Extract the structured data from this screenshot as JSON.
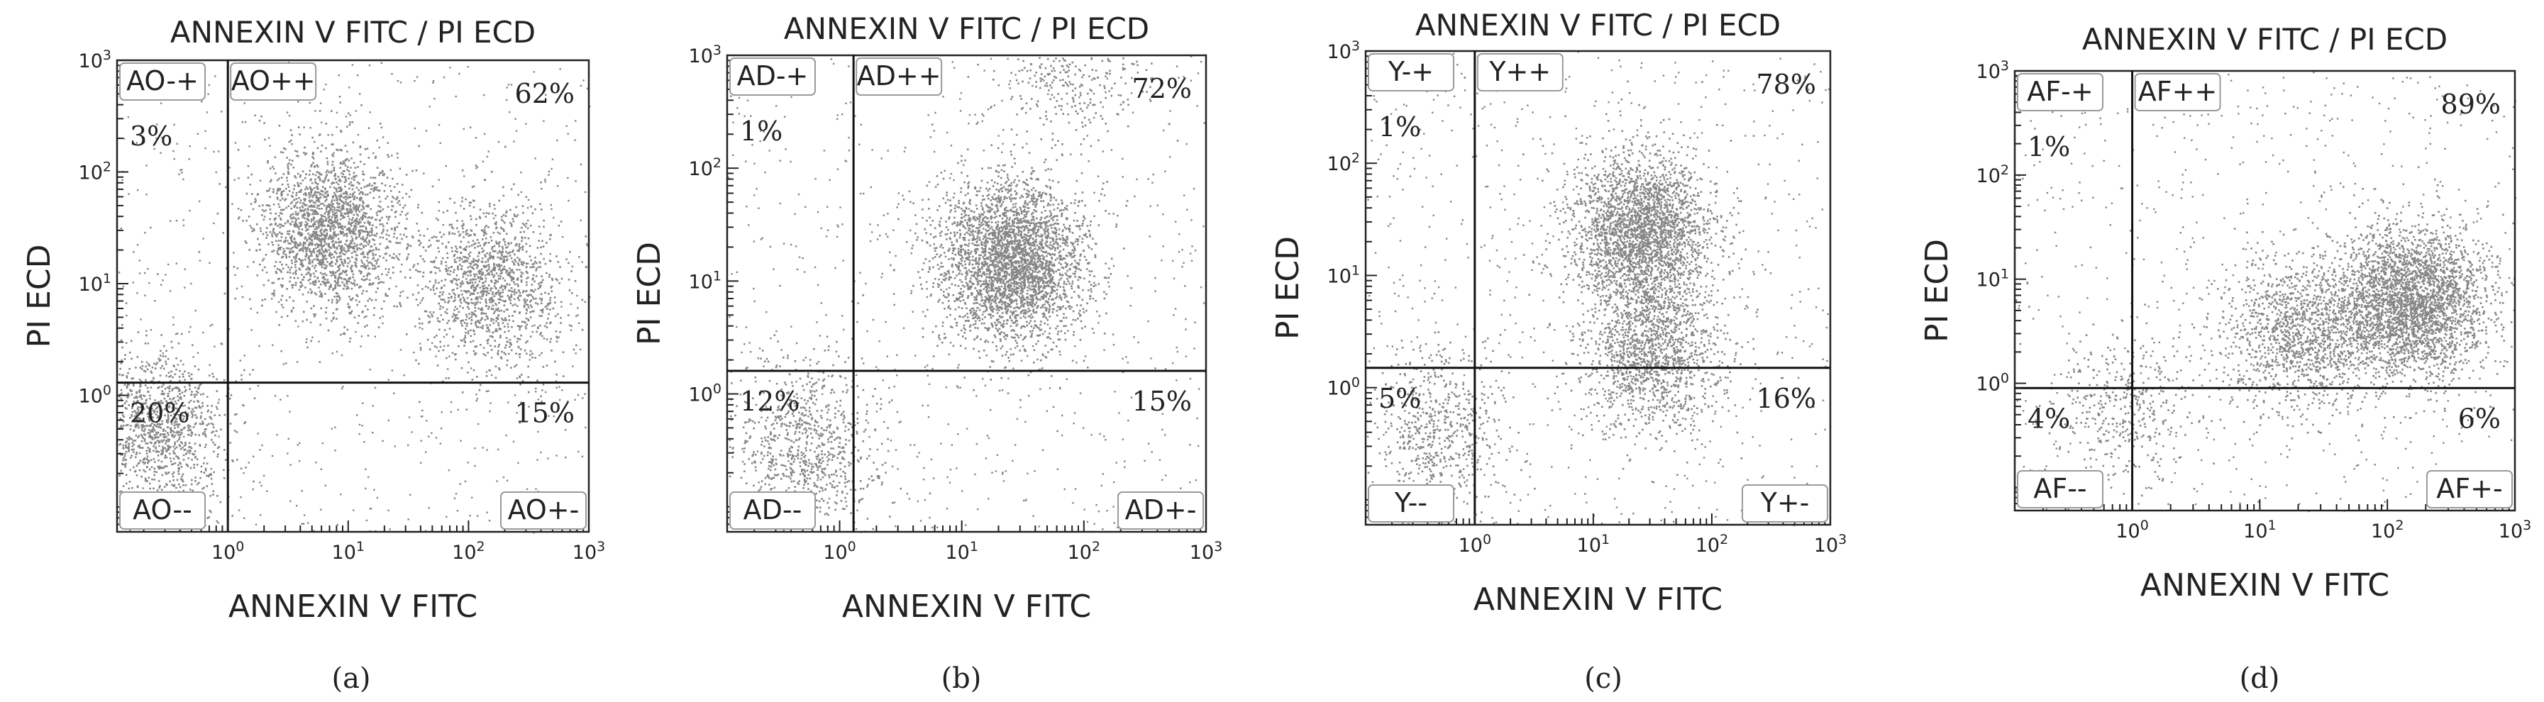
{
  "chart_data": [
    {
      "type": "scatter",
      "panel": "(a)",
      "title": "ANNEXIN V FITC / PI ECD",
      "xlabel": "ANNEXIN V FITC",
      "ylabel": "PI ECD",
      "x_scale": "log",
      "y_scale": "log",
      "xlim": [
        0.12,
        1000
      ],
      "ylim": [
        0.06,
        1000
      ],
      "x_ticks": [
        1,
        10,
        100,
        1000
      ],
      "y_ticks": [
        1,
        10,
        100,
        1000
      ],
      "gate": {
        "x": 1.0,
        "y": 1.3
      },
      "quadrants": {
        "upper_left": {
          "label": "AO-+",
          "percent": "3%"
        },
        "upper_right": {
          "label": "AO++",
          "percent": "62%"
        },
        "lower_left": {
          "label": "AO--",
          "percent": "20%"
        },
        "lower_right": {
          "label": "AO+-",
          "percent": "15%"
        }
      },
      "clusters": [
        {
          "x": 7,
          "y": 30,
          "weight": 2000
        },
        {
          "x": 150,
          "y": 10,
          "weight": 1300
        },
        {
          "x": 0.25,
          "y": 0.5,
          "weight": 1200
        }
      ],
      "caption": "(a)"
    },
    {
      "type": "scatter",
      "panel": "(b)",
      "title": "ANNEXIN V FITC / PI ECD",
      "xlabel": "ANNEXIN V FITC",
      "ylabel": "PI ECD",
      "x_scale": "log",
      "y_scale": "log",
      "xlim": [
        0.12,
        1000
      ],
      "ylim": [
        0.06,
        1000
      ],
      "x_ticks": [
        1,
        10,
        100,
        1000
      ],
      "y_ticks": [
        1,
        10,
        100,
        1000
      ],
      "gate": {
        "x": 1.3,
        "y": 1.6
      },
      "quadrants": {
        "upper_left": {
          "label": "AD-+",
          "percent": "1%"
        },
        "upper_right": {
          "label": "AD++",
          "percent": "72%"
        },
        "lower_left": {
          "label": "AD--",
          "percent": "12%"
        },
        "lower_right": {
          "label": "AD+-",
          "percent": "15%"
        }
      },
      "clusters": [
        {
          "x": 25,
          "y": 15,
          "weight": 3200
        },
        {
          "x": 0.5,
          "y": 0.35,
          "weight": 800
        },
        {
          "x": 80,
          "y": 1000,
          "weight": 500
        }
      ],
      "caption": "(b)"
    },
    {
      "type": "scatter",
      "panel": "(c)",
      "title": "ANNEXIN V FITC / PI ECD",
      "xlabel": "ANNEXIN V FITC",
      "ylabel": "PI ECD",
      "x_scale": "log",
      "y_scale": "log",
      "xlim": [
        0.12,
        1000
      ],
      "ylim": [
        0.06,
        1000
      ],
      "x_ticks": [
        1,
        10,
        100,
        1000
      ],
      "y_ticks": [
        1,
        10,
        100,
        1000
      ],
      "gate": {
        "x": 1.0,
        "y": 1.5
      },
      "quadrants": {
        "upper_left": {
          "label": "Y-+",
          "percent": "1%"
        },
        "upper_right": {
          "label": "Y++",
          "percent": "78%"
        },
        "lower_left": {
          "label": "Y--",
          "percent": "5%"
        },
        "lower_right": {
          "label": "Y+-",
          "percent": "16%"
        }
      },
      "clusters": [
        {
          "x": 25,
          "y": 25,
          "weight": 2600
        },
        {
          "x": 30,
          "y": 2,
          "weight": 1400
        },
        {
          "x": 0.5,
          "y": 0.4,
          "weight": 600
        }
      ],
      "caption": "(c)"
    },
    {
      "type": "scatter",
      "panel": "(d)",
      "title": "ANNEXIN V FITC / PI ECD",
      "xlabel": "ANNEXIN V FITC",
      "ylabel": "PI ECD",
      "x_scale": "log",
      "y_scale": "log",
      "xlim": [
        0.12,
        1000
      ],
      "ylim": [
        0.06,
        1000
      ],
      "x_ticks": [
        1,
        10,
        100,
        1000
      ],
      "y_ticks": [
        1,
        10,
        100,
        1000
      ],
      "gate": {
        "x": 1.0,
        "y": 0.9
      },
      "quadrants": {
        "upper_left": {
          "label": "AF-+",
          "percent": "1%"
        },
        "upper_right": {
          "label": "AF++",
          "percent": "89%"
        },
        "lower_left": {
          "label": "AF--",
          "percent": "4%"
        },
        "lower_right": {
          "label": "AF+-",
          "percent": "6%"
        }
      },
      "clusters": [
        {
          "x": 150,
          "y": 6,
          "weight": 3000
        },
        {
          "x": 20,
          "y": 3,
          "weight": 1300
        },
        {
          "x": 0.8,
          "y": 0.6,
          "weight": 400
        }
      ],
      "caption": "(d)"
    }
  ]
}
